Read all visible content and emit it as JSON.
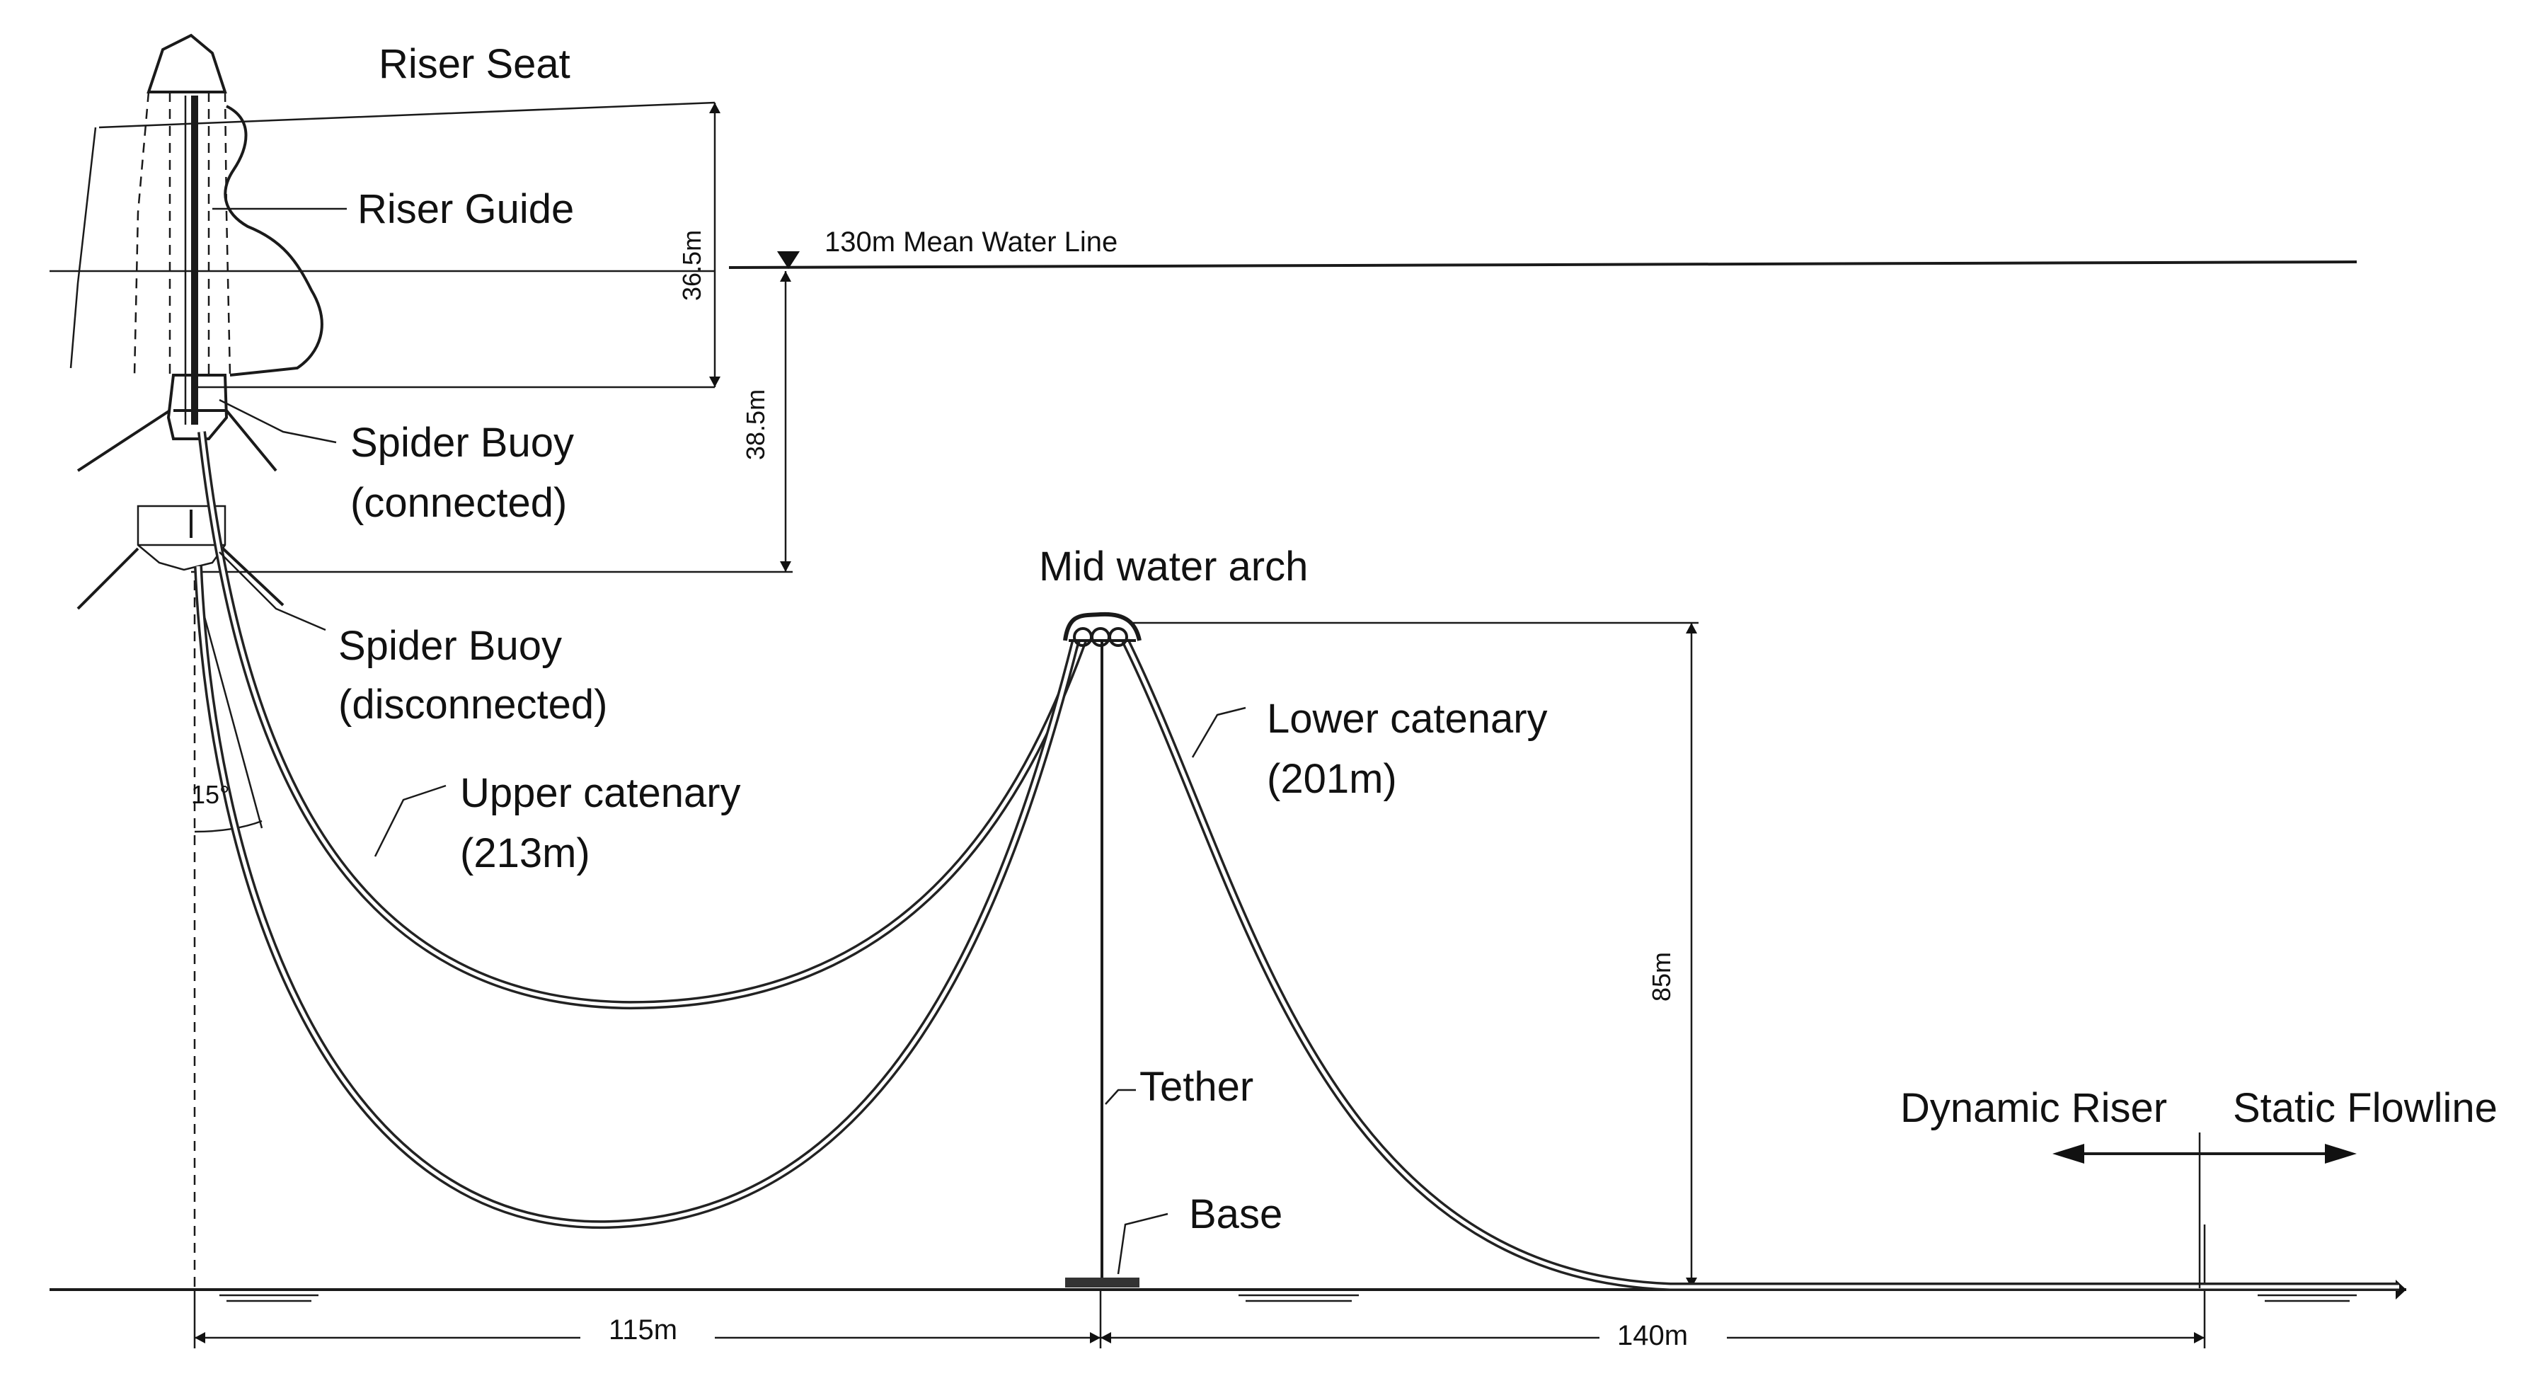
{
  "labels": {
    "riser_seat": "Riser Seat",
    "riser_guide": "Riser Guide",
    "spider_buoy_connected_1": "Spider Buoy",
    "spider_buoy_connected_2": "(connected)",
    "spider_buoy_disconnected_1": "Spider Buoy",
    "spider_buoy_disconnected_2": "(disconnected)",
    "mid_water_arch": "Mid water arch",
    "upper_catenary_1": "Upper catenary",
    "upper_catenary_2": "(213m)",
    "lower_catenary_1": "Lower catenary",
    "lower_catenary_2": "(201m)",
    "tether": "Tether",
    "base": "Base",
    "dynamic_riser": "Dynamic Riser",
    "static_flowline": "Static Flowline",
    "mean_water_line": "130m  Mean Water Line",
    "angle": "15°"
  },
  "dimensions": {
    "dim_36_5": "36.5m",
    "dim_38_5": "38.5m",
    "dim_85": "85m",
    "dim_115": "115m",
    "dim_140": "140m"
  }
}
